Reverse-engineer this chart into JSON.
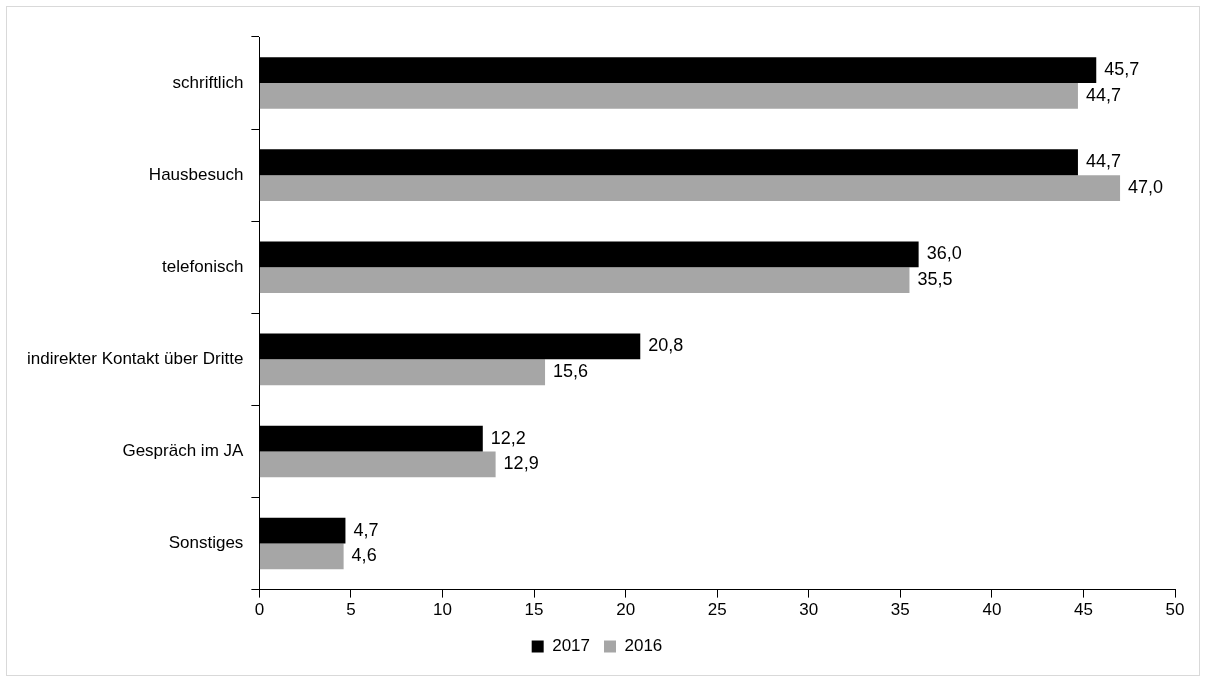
{
  "chart_data": {
    "type": "bar",
    "orientation": "horizontal",
    "categories": [
      "schriftlich",
      "Hausbesuch",
      "telefonisch",
      "indirekter Kontakt über Dritte",
      "Gespräch im JA",
      "Sonstiges"
    ],
    "series": [
      {
        "name": "2017",
        "color": "#000000",
        "values": [
          45.7,
          44.7,
          36.0,
          20.8,
          12.2,
          4.7
        ],
        "value_labels": [
          "45,7",
          "44,7",
          "36,0",
          "20,8",
          "12,2",
          "4,7"
        ]
      },
      {
        "name": "2016",
        "color": "#a6a6a6",
        "values": [
          44.7,
          47.0,
          35.5,
          15.6,
          12.9,
          4.6
        ],
        "value_labels": [
          "44,7",
          "47,0",
          "35,5",
          "15,6",
          "12,9",
          "4,6"
        ]
      }
    ],
    "xlim": [
      0,
      50
    ],
    "xticks": [
      0,
      5,
      10,
      15,
      20,
      25,
      30,
      35,
      40,
      45,
      50
    ],
    "grid": false,
    "legend": "bottom"
  }
}
